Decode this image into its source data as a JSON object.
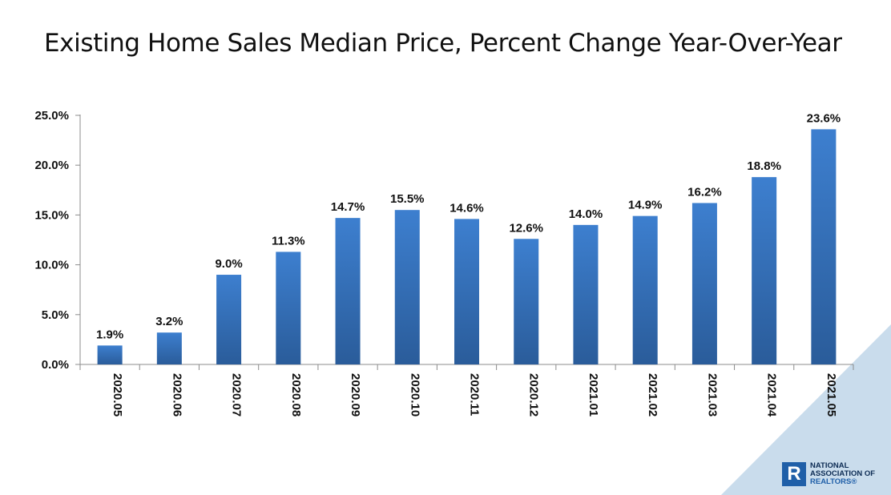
{
  "chart_data": {
    "type": "bar",
    "title": "Existing Home Sales Median Price, Percent Change Year-Over-Year",
    "categories": [
      "2020.05",
      "2020.06",
      "2020.07",
      "2020.08",
      "2020.09",
      "2020.10",
      "2020.11",
      "2020.12",
      "2021.01",
      "2021.02",
      "2021.03",
      "2021.04",
      "2021.05"
    ],
    "values": [
      1.9,
      3.2,
      9.0,
      11.3,
      14.7,
      15.5,
      14.6,
      12.6,
      14.0,
      14.9,
      16.2,
      18.8,
      23.6
    ],
    "data_labels": [
      "1.9%",
      "3.2%",
      "9.0%",
      "11.3%",
      "14.7%",
      "15.5%",
      "14.6%",
      "12.6%",
      "14.0%",
      "14.9%",
      "16.2%",
      "18.8%",
      "23.6%"
    ],
    "ylim": [
      0,
      25
    ],
    "yticks": [
      0,
      5,
      10,
      15,
      20,
      25
    ],
    "ytick_labels": [
      "0.0%",
      "5.0%",
      "10.0%",
      "15.0%",
      "20.0%",
      "25.0%"
    ],
    "xlabel": "",
    "ylabel": "",
    "grid": false,
    "bar_color_top": "#3d7fcf",
    "bar_color_bottom": "#2a5c9a"
  },
  "logo": {
    "icon_letter": "R",
    "line1": "NATIONAL",
    "line2": "ASSOCIATION OF",
    "line3": "REALTORS®"
  },
  "colors": {
    "corner": "#c9dcec",
    "logo_blue": "#1f5fa8"
  }
}
